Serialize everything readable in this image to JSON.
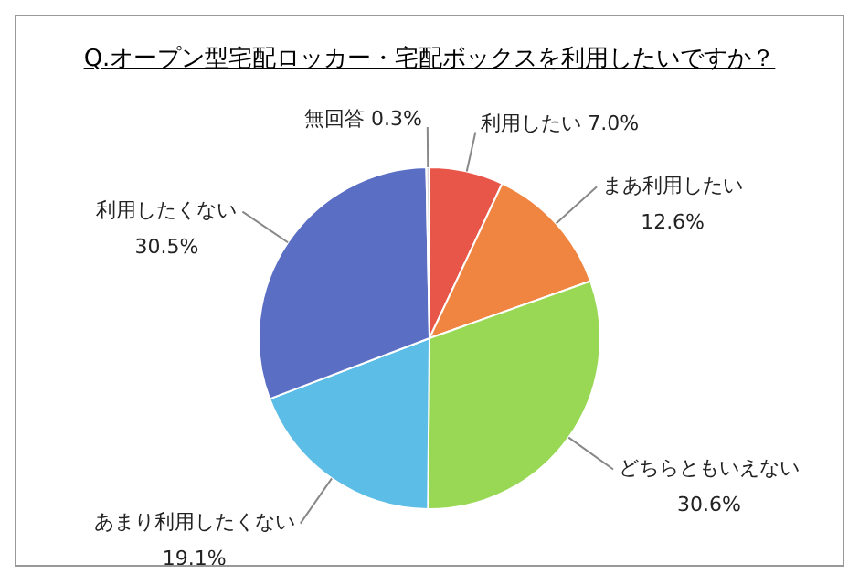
{
  "chart_data": {
    "type": "pie",
    "title": "Q.オープン型宅配ロッカー・宅配ボックスを利用したいですか？",
    "categories": [
      "利用したい",
      "まあ利用したい",
      "どちらともいえない",
      "あまり利用したくない",
      "利用したくない",
      "無回答"
    ],
    "values": [
      7.0,
      12.6,
      30.6,
      19.1,
      30.5,
      0.3
    ],
    "colors": [
      "#e8564a",
      "#ef8540",
      "#99d855",
      "#5cbde6",
      "#5a6ec4",
      "#d9d9d9"
    ],
    "value_labels": [
      "7.0%",
      "12.6%",
      "30.6%",
      "19.1%",
      "30.5%",
      "0.3%"
    ],
    "legend": false
  }
}
